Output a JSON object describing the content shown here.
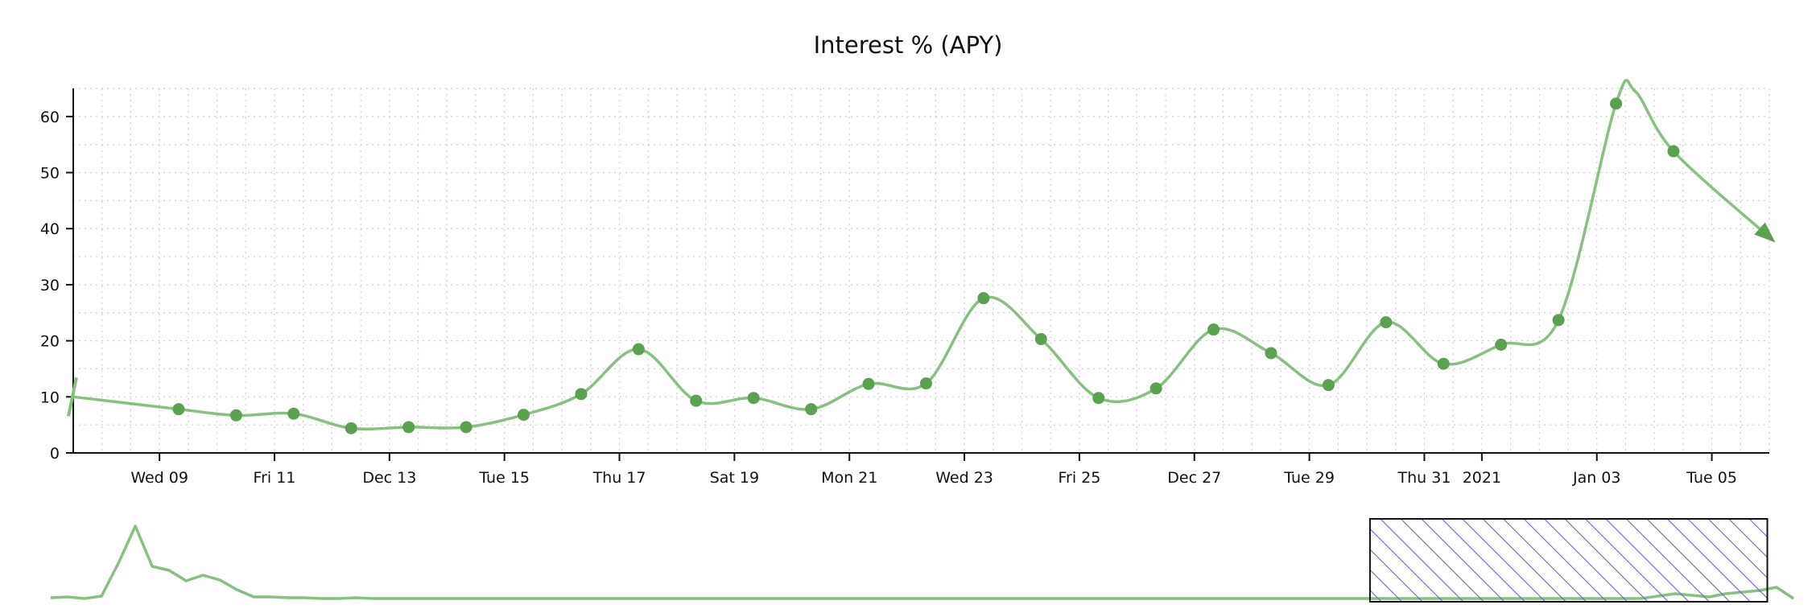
{
  "chart_data": {
    "type": "line",
    "title": "Interest % (APY)",
    "xlabel": "",
    "ylabel": "",
    "series_color": "#5aa150",
    "line_color": "#86c17f",
    "brush_fill_color": "#6b5fcf",
    "grid": true,
    "ylim": [
      0,
      65
    ],
    "xlim": [
      "2020-12-07T12:00",
      "2021-01-06T00:00"
    ],
    "yticks": [
      0,
      10,
      20,
      30,
      40,
      50,
      60
    ],
    "xticks": [
      {
        "date": "2020-12-09T00:00",
        "label": "Wed 09"
      },
      {
        "date": "2020-12-11T00:00",
        "label": "Fri 11"
      },
      {
        "date": "2020-12-13T00:00",
        "label": "Dec 13"
      },
      {
        "date": "2020-12-15T00:00",
        "label": "Tue 15"
      },
      {
        "date": "2020-12-17T00:00",
        "label": "Thu 17"
      },
      {
        "date": "2020-12-19T00:00",
        "label": "Sat 19"
      },
      {
        "date": "2020-12-21T00:00",
        "label": "Mon 21"
      },
      {
        "date": "2020-12-23T00:00",
        "label": "Wed 23"
      },
      {
        "date": "2020-12-25T00:00",
        "label": "Fri 25"
      },
      {
        "date": "2020-12-27T00:00",
        "label": "Dec 27"
      },
      {
        "date": "2020-12-29T00:00",
        "label": "Tue 29"
      },
      {
        "date": "2020-12-31T00:00",
        "label": "Thu 31"
      },
      {
        "date": "2021-01-01T00:00",
        "label": "2021"
      },
      {
        "date": "2021-01-03T00:00",
        "label": "Jan 03"
      },
      {
        "date": "2021-01-05T00:00",
        "label": "Tue 05"
      }
    ],
    "points": [
      {
        "x": "2020-12-09T08:00",
        "y": 7.8
      },
      {
        "x": "2020-12-10T08:00",
        "y": 6.7
      },
      {
        "x": "2020-12-11T08:00",
        "y": 7.0
      },
      {
        "x": "2020-12-12T08:00",
        "y": 4.4
      },
      {
        "x": "2020-12-13T08:00",
        "y": 4.6
      },
      {
        "x": "2020-12-14T08:00",
        "y": 4.6
      },
      {
        "x": "2020-12-15T08:00",
        "y": 6.8
      },
      {
        "x": "2020-12-16T08:00",
        "y": 10.5
      },
      {
        "x": "2020-12-17T08:00",
        "y": 18.5
      },
      {
        "x": "2020-12-18T08:00",
        "y": 9.3
      },
      {
        "x": "2020-12-19T08:00",
        "y": 9.8
      },
      {
        "x": "2020-12-20T08:00",
        "y": 7.8
      },
      {
        "x": "2020-12-21T08:00",
        "y": 12.3
      },
      {
        "x": "2020-12-22T08:00",
        "y": 12.4
      },
      {
        "x": "2020-12-23T08:00",
        "y": 27.6
      },
      {
        "x": "2020-12-24T08:00",
        "y": 20.3
      },
      {
        "x": "2020-12-25T08:00",
        "y": 9.8
      },
      {
        "x": "2020-12-26T08:00",
        "y": 11.5
      },
      {
        "x": "2020-12-27T08:00",
        "y": 22.0
      },
      {
        "x": "2020-12-28T08:00",
        "y": 17.8
      },
      {
        "x": "2020-12-29T08:00",
        "y": 12.1
      },
      {
        "x": "2020-12-30T08:00",
        "y": 23.3
      },
      {
        "x": "2020-12-31T08:00",
        "y": 15.9
      },
      {
        "x": "2021-01-01T08:00",
        "y": 19.3
      },
      {
        "x": "2021-01-02T08:00",
        "y": 23.7
      },
      {
        "x": "2021-01-03T08:00",
        "y": 62.3
      },
      {
        "x": "2021-01-04T08:00",
        "y": 53.8
      }
    ],
    "line_start": {
      "x": "2020-12-07T12:00",
      "y": 10.0
    },
    "line_peak": {
      "x": "2021-01-03T16:00",
      "y": 64.5
    },
    "line_end": {
      "x": "2021-01-06T00:00",
      "y": 38.5
    },
    "overview": {
      "brush": {
        "from": 0.757,
        "to": 0.985
      },
      "values": [
        0.7,
        0.8,
        0.6,
        0.9,
        5.0,
        9.6,
        4.6,
        4.1,
        2.8,
        3.5,
        2.9,
        1.7,
        0.8,
        0.8,
        0.7,
        0.7,
        0.6,
        0.6,
        0.7,
        0.6,
        0.6,
        0.6,
        0.6,
        0.6,
        0.6,
        0.6,
        0.6,
        0.6,
        0.6,
        0.6,
        0.6,
        0.6,
        0.6,
        0.6,
        0.6,
        0.6,
        0.6,
        0.6,
        0.6,
        0.6,
        0.6,
        0.6,
        0.6,
        0.6,
        0.6,
        0.6,
        0.6,
        0.6,
        0.6,
        0.6,
        0.6,
        0.6,
        0.6,
        0.6,
        0.6,
        0.6,
        0.6,
        0.6,
        0.6,
        0.6,
        0.6,
        0.6,
        0.6,
        0.6,
        0.6,
        0.6,
        0.6,
        0.6,
        0.6,
        0.6,
        0.6,
        0.6,
        0.6,
        0.6,
        0.6,
        0.6,
        0.6,
        0.6,
        0.6,
        0.6,
        0.6,
        0.6,
        0.6,
        0.6,
        0.6,
        0.6,
        0.6,
        0.6,
        0.6,
        0.6,
        0.6,
        0.6,
        0.6,
        0.6,
        0.6,
        0.9,
        1.2,
        1.0,
        0.8,
        1.2,
        1.4,
        1.6,
        2.0,
        0.6
      ]
    }
  }
}
